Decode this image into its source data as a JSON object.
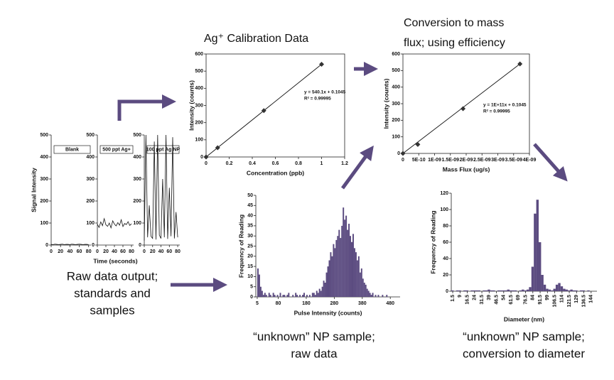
{
  "chart_data": [
    {
      "type": "line",
      "label": "Blank",
      "ylabel": "Signal Intensity",
      "color": "#111",
      "x": [
        0,
        4,
        8,
        12,
        16,
        20,
        24,
        28,
        32,
        36,
        40,
        44,
        48,
        52,
        56,
        60,
        64,
        68,
        72,
        76,
        80
      ],
      "values": [
        3,
        2,
        4,
        3,
        2,
        3,
        4,
        2,
        3,
        3,
        2,
        4,
        3,
        2,
        3,
        4,
        3,
        2,
        3,
        3,
        2
      ],
      "xlim": [
        0,
        85
      ],
      "ylim": [
        0,
        500
      ],
      "xticks": [
        0,
        20,
        40,
        60,
        80
      ],
      "yticks": [
        0,
        100,
        200,
        300,
        400,
        500
      ]
    },
    {
      "type": "line",
      "label": "500 ppt Ag+",
      "xlabel": "Time (seconds)",
      "color": "#111",
      "x": [
        0,
        4,
        8,
        12,
        16,
        20,
        24,
        28,
        32,
        36,
        40,
        44,
        48,
        52,
        56,
        60,
        64,
        68,
        72,
        76,
        80
      ],
      "values": [
        95,
        80,
        105,
        88,
        120,
        92,
        85,
        100,
        78,
        110,
        95,
        87,
        102,
        90,
        115,
        84,
        98,
        93,
        106,
        89,
        97
      ],
      "xlim": [
        0,
        85
      ],
      "ylim": [
        0,
        500
      ],
      "xticks": [
        0,
        20,
        40,
        60,
        80
      ],
      "yticks": [
        0,
        100,
        200,
        300,
        400,
        500
      ]
    },
    {
      "type": "line",
      "label": "100 ppt Ag NP",
      "color": "#111",
      "x": [
        0,
        4,
        8,
        12,
        16,
        20,
        24,
        28,
        32,
        36,
        40,
        44,
        48,
        52,
        56,
        60,
        64,
        68,
        72,
        76,
        80
      ],
      "values": [
        20,
        500,
        35,
        180,
        40,
        30,
        470,
        25,
        500,
        45,
        30,
        300,
        35,
        500,
        28,
        260,
        40,
        490,
        30,
        150,
        35
      ],
      "xlim": [
        0,
        85
      ],
      "ylim": [
        0,
        500
      ],
      "xticks": [
        0,
        20,
        40,
        60,
        80
      ],
      "yticks": [
        0,
        100,
        200,
        300,
        400,
        500
      ]
    },
    {
      "type": "scatter",
      "title": "Ag⁺ Calibration Data",
      "xlabel": "Concentration (ppb)",
      "ylabel": "Intensity (counts)",
      "annotations": [
        "y = 540.1x + 0.1045",
        "R² = 0.99995"
      ],
      "frame": true,
      "color": "#333",
      "x": [
        0,
        0.1,
        0.5,
        1
      ],
      "values": [
        0,
        54,
        270,
        540
      ],
      "xlim": [
        0,
        1.2
      ],
      "ylim": [
        0,
        600
      ],
      "xticks": [
        0,
        0.2,
        0.4,
        0.6,
        0.8,
        1,
        1.2
      ],
      "yticks": [
        0,
        100,
        200,
        300,
        400,
        500,
        600
      ]
    },
    {
      "type": "scatter",
      "title_lines": [
        "Conversion to mass",
        "flux; using efficiency"
      ],
      "xlabel": "Mass Flux (ug/s)",
      "ylabel": "Intensity (counts)",
      "annotations": [
        "y = 1E+11x + 0.1045",
        "R² = 0.99995"
      ],
      "frame": true,
      "color": "#333",
      "x": [
        0,
        4.7e-10,
        1.9e-09,
        3.7e-09
      ],
      "values": [
        0,
        54,
        270,
        540
      ],
      "xlim": [
        0,
        4e-09
      ],
      "ylim": [
        0,
        600
      ],
      "xticks": [
        0,
        {
          "value": 5e-10,
          "label": "5E-10"
        },
        {
          "value": 1e-09,
          "label": "1E-09"
        },
        {
          "value": 1.5e-09,
          "label": "1.5E-09"
        },
        {
          "value": 2e-09,
          "label": "2E-09"
        },
        {
          "value": 2.5e-09,
          "label": "2.5E-09"
        },
        {
          "value": 3e-09,
          "label": "3E-09"
        },
        {
          "value": 3.5e-09,
          "label": "3.5E-09"
        },
        {
          "value": 4e-09,
          "label": "4E-09"
        }
      ],
      "yticks": [
        0,
        100,
        200,
        300,
        400,
        500,
        600
      ]
    },
    {
      "type": "histogram",
      "xlabel": "Pulse Intensity (counts)",
      "ylabel": "Frequency of Reading",
      "color": "#5b4b80",
      "bins": [
        5,
        10,
        15,
        20,
        25,
        30,
        35,
        40,
        45,
        50,
        55,
        60,
        65,
        70,
        75,
        80,
        85,
        90,
        95,
        100,
        105,
        110,
        115,
        120,
        125,
        130,
        135,
        140,
        145,
        150,
        155,
        160,
        165,
        170,
        175,
        180,
        185,
        190,
        195,
        200,
        205,
        210,
        215,
        220,
        225,
        230,
        235,
        240,
        245,
        250,
        255,
        260,
        265,
        270,
        275,
        280,
        285,
        290,
        295,
        300,
        305,
        310,
        315,
        320,
        325,
        330,
        335,
        340,
        345,
        350,
        355,
        360,
        365,
        370,
        375,
        380,
        385,
        390,
        395,
        400,
        405,
        410,
        415,
        420,
        425,
        430,
        435,
        440,
        445,
        450,
        455,
        460,
        465,
        470,
        475,
        480,
        485,
        490,
        495,
        500,
        505
      ],
      "values": [
        14,
        11,
        5,
        3,
        1,
        2,
        1,
        0,
        2,
        1,
        0,
        2,
        1,
        0,
        1,
        0,
        2,
        0,
        1,
        1,
        0,
        1,
        2,
        0,
        0,
        1,
        0,
        2,
        1,
        0,
        1,
        0,
        1,
        2,
        0,
        1,
        0,
        1,
        0,
        2,
        2,
        1,
        3,
        2,
        4,
        3,
        5,
        8,
        7,
        12,
        15,
        18,
        22,
        20,
        26,
        24,
        28,
        30,
        33,
        29,
        35,
        44,
        38,
        40,
        33,
        36,
        30,
        27,
        31,
        24,
        22,
        18,
        20,
        12,
        14,
        9,
        7,
        6,
        4,
        3,
        2,
        1,
        2,
        0,
        1,
        0,
        1,
        0,
        0,
        1,
        0,
        0,
        1,
        0,
        0,
        0,
        0,
        0,
        0,
        0
      ],
      "xlim": [
        0,
        515
      ],
      "ylim": [
        0,
        50
      ],
      "xticks": [
        5,
        80,
        180,
        280,
        380,
        480
      ],
      "yticks": [
        0,
        5,
        10,
        15,
        20,
        25,
        30,
        35,
        40,
        45,
        50
      ]
    },
    {
      "type": "histogram",
      "xlabel": "Diameter (nm)",
      "ylabel": "Frequency of Reading",
      "color": "#5b4b80",
      "xtick_rotation": 90,
      "bins": [
        0,
        2.5,
        5,
        7.5,
        10,
        12.5,
        15,
        17.5,
        20,
        22.5,
        25,
        27.5,
        30,
        32.5,
        35,
        37.5,
        40,
        42.5,
        45,
        47.5,
        50,
        52.5,
        55,
        57.5,
        60,
        62.5,
        65,
        67.5,
        70,
        72.5,
        75,
        77.5,
        80,
        82.5,
        85,
        87.5,
        90,
        92.5,
        95,
        97.5,
        100,
        102.5,
        105,
        107.5,
        110,
        112.5,
        115,
        117.5,
        120,
        122.5,
        125,
        127.5,
        130,
        132.5,
        135,
        137.5,
        140,
        142.5,
        145,
        147.5,
        150
      ],
      "values": [
        1,
        0,
        1,
        1,
        0,
        1,
        1,
        0,
        1,
        1,
        1,
        1,
        0,
        1,
        1,
        2,
        1,
        1,
        0,
        1,
        1,
        1,
        1,
        2,
        1,
        1,
        1,
        0,
        1,
        2,
        1,
        2,
        5,
        30,
        95,
        112,
        60,
        20,
        8,
        3,
        2,
        1,
        3,
        8,
        10,
        6,
        3,
        2,
        1,
        2,
        1,
        1,
        0,
        1,
        1,
        0,
        1,
        0,
        0,
        0
      ],
      "xlim": [
        0,
        150
      ],
      "ylim": [
        0,
        120
      ],
      "xticks": [
        1.5,
        9,
        16.5,
        24,
        31.5,
        39,
        46.5,
        54,
        61.5,
        69,
        76.5,
        84,
        91.5,
        99,
        106.5,
        114,
        121.5,
        129,
        136.5,
        144
      ],
      "yticks": [
        0,
        20,
        40,
        60,
        80,
        100,
        120
      ]
    }
  ],
  "captions": [
    {
      "lines": [
        "Raw data output;",
        "standards and",
        "samples"
      ]
    },
    {
      "lines": [
        "“unknown” NP sample;",
        "raw data"
      ]
    },
    {
      "lines": [
        "“unknown” NP sample;",
        "conversion to diameter"
      ]
    }
  ]
}
